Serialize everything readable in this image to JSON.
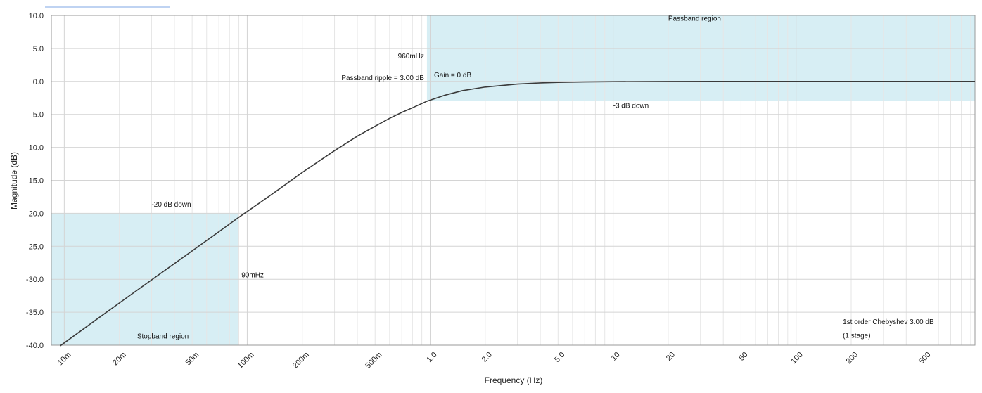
{
  "chart_data": {
    "type": "line",
    "xscale": "log",
    "xlabel": "Frequency (Hz)",
    "ylabel": "Magnitude (dB)",
    "xlim": [
      0.0085,
      950
    ],
    "ylim": [
      -40,
      10
    ],
    "grid": true,
    "x_ticks": [
      {
        "value": 0.01,
        "label": "10m"
      },
      {
        "value": 0.02,
        "label": "20m"
      },
      {
        "value": 0.05,
        "label": "50m"
      },
      {
        "value": 0.1,
        "label": "100m"
      },
      {
        "value": 0.2,
        "label": "200m"
      },
      {
        "value": 0.5,
        "label": "500m"
      },
      {
        "value": 1,
        "label": "1.0"
      },
      {
        "value": 2,
        "label": "2.0"
      },
      {
        "value": 5,
        "label": "5.0"
      },
      {
        "value": 10,
        "label": "10"
      },
      {
        "value": 20,
        "label": "20"
      },
      {
        "value": 50,
        "label": "50"
      },
      {
        "value": 100,
        "label": "100"
      },
      {
        "value": 200,
        "label": "200"
      },
      {
        "value": 500,
        "label": "500"
      }
    ],
    "y_ticks": [
      {
        "value": 10,
        "label": "10.0"
      },
      {
        "value": 5,
        "label": "5.0"
      },
      {
        "value": 0,
        "label": "0.0"
      },
      {
        "value": -5,
        "label": "-5.0"
      },
      {
        "value": -10,
        "label": "-10.0"
      },
      {
        "value": -15,
        "label": "-15.0"
      },
      {
        "value": -20,
        "label": "-20.0"
      },
      {
        "value": -25,
        "label": "-25.0"
      },
      {
        "value": -30,
        "label": "-30.0"
      },
      {
        "value": -35,
        "label": "-35.0"
      },
      {
        "value": -40,
        "label": "-40.0"
      }
    ],
    "series": [
      {
        "x": [
          0.0095,
          0.015,
          0.02,
          0.03,
          0.05,
          0.07,
          0.09,
          0.12,
          0.15,
          0.2,
          0.3,
          0.4,
          0.5,
          0.6,
          0.7,
          0.8,
          0.96,
          1.2,
          1.5,
          2,
          3,
          4,
          5,
          7,
          10,
          20,
          50,
          100,
          200,
          500,
          950
        ],
        "y": [
          -40.1,
          -36.1,
          -33.6,
          -30.1,
          -25.7,
          -22.8,
          -20.6,
          -18.2,
          -16.3,
          -13.8,
          -10.5,
          -8.3,
          -6.8,
          -5.6,
          -4.7,
          -4.0,
          -3.0,
          -2.1,
          -1.4,
          -0.85,
          -0.4,
          -0.23,
          -0.15,
          -0.08,
          -0.04,
          -0.01,
          0,
          0,
          0,
          0,
          0
        ],
        "color": "#3a3a3a"
      }
    ],
    "regions": [
      {
        "name": "passband",
        "x": [
          0.96,
          950
        ],
        "y": [
          -3,
          10
        ],
        "color": "#bde3ec"
      },
      {
        "name": "stopband",
        "x": [
          0.0085,
          0.09
        ],
        "y": [
          -40,
          -20
        ],
        "color": "#bde3ec"
      }
    ],
    "annotations": [
      {
        "text": "Passband region",
        "x": 20,
        "y": 9.2
      },
      {
        "text": "960mHz",
        "x": 0.96,
        "y": 3.5
      },
      {
        "text": "Passband ripple = 3.00 dB",
        "x": 0.96,
        "y": 0.2
      },
      {
        "text": "Gain = 0 dB",
        "x": 1.05,
        "y": 0.6
      },
      {
        "text": "-3 dB down",
        "x": 10,
        "y": -4.0
      },
      {
        "text": "-20 dB down",
        "x": 0.03,
        "y": -19.0
      },
      {
        "text": "90mHz",
        "x": 0.093,
        "y": -29.7
      },
      {
        "text": "Stopband region",
        "x": 0.025,
        "y": -39.0
      },
      {
        "text": "1st order Chebyshev 3.00 dB",
        "x": 180,
        "y": -36.8
      },
      {
        "text": "(1 stage)",
        "x": 180,
        "y": -38.9
      }
    ]
  }
}
